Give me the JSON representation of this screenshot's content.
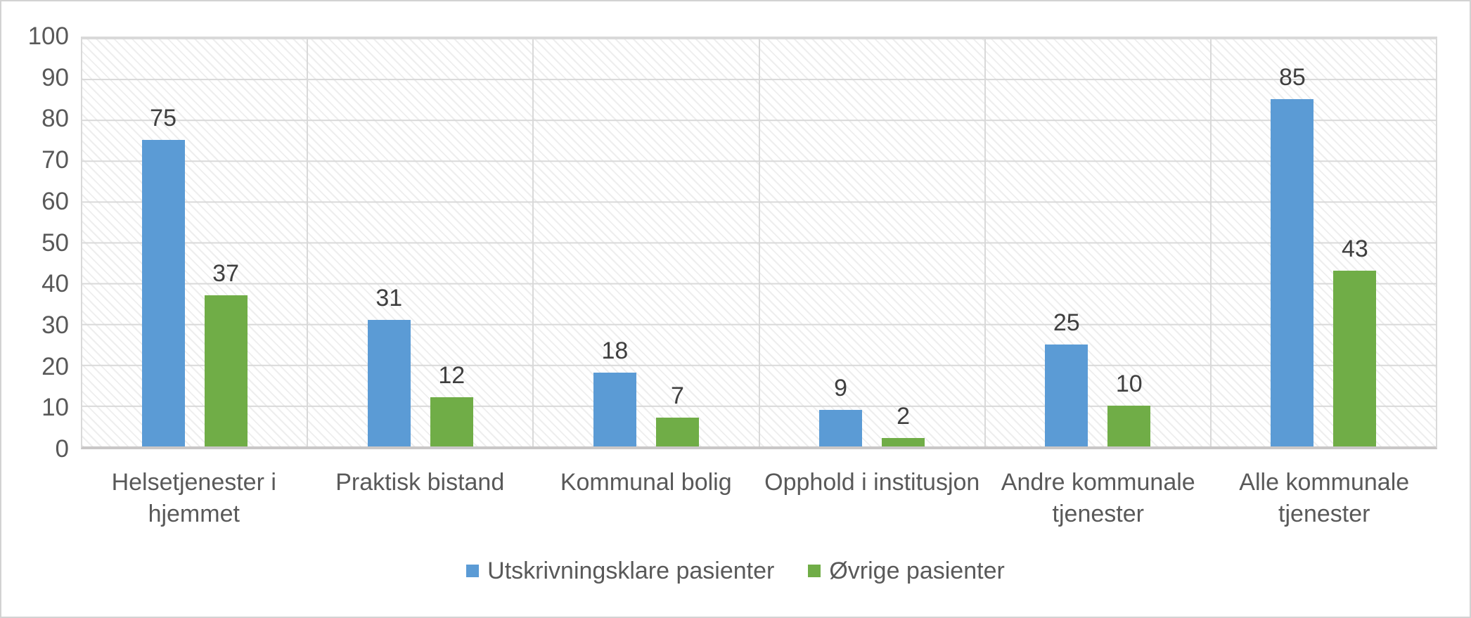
{
  "chart_data": {
    "type": "bar",
    "categories": [
      "Helsetjenester i hjemmet",
      "Praktisk bistand",
      "Kommunal bolig",
      "Opphold i institusjon",
      "Andre kommunale tjenester",
      "Alle kommunale tjenester"
    ],
    "category_label_lines": [
      [
        "Helsetjenester i",
        "hjemmet"
      ],
      [
        "Praktisk bistand"
      ],
      [
        "Kommunal bolig"
      ],
      [
        "Opphold i institusjon"
      ],
      [
        "Andre kommunale",
        "tjenester"
      ],
      [
        "Alle kommunale",
        "tjenester"
      ]
    ],
    "series": [
      {
        "name": "Utskrivningsklare pasienter",
        "color": "#5B9BD5",
        "values": [
          75,
          31,
          18,
          9,
          25,
          85
        ]
      },
      {
        "name": "Øvrige pasienter",
        "color": "#70AD47",
        "values": [
          37,
          12,
          7,
          2,
          10,
          43
        ]
      }
    ],
    "title": "",
    "xlabel": "",
    "ylabel": "",
    "ylim": [
      0,
      100
    ],
    "yticks": [
      0,
      10,
      20,
      30,
      40,
      50,
      60,
      70,
      80,
      90,
      100
    ],
    "grid": "horizontal-and-vertical-category-boundaries",
    "plot_background": "light-gray-diagonal-hatch",
    "legend_position": "bottom-center",
    "data_labels": "above-bars",
    "colors": {
      "gridline": "#D9D9D9",
      "axis_line": "#C9C7C7",
      "tick_text": "#595959",
      "category_text": "#595959",
      "data_label_text": "#3F3F3F",
      "legend_text": "#595959",
      "outer_border": "#D2D2D2",
      "background": "#FFFFFF"
    }
  }
}
